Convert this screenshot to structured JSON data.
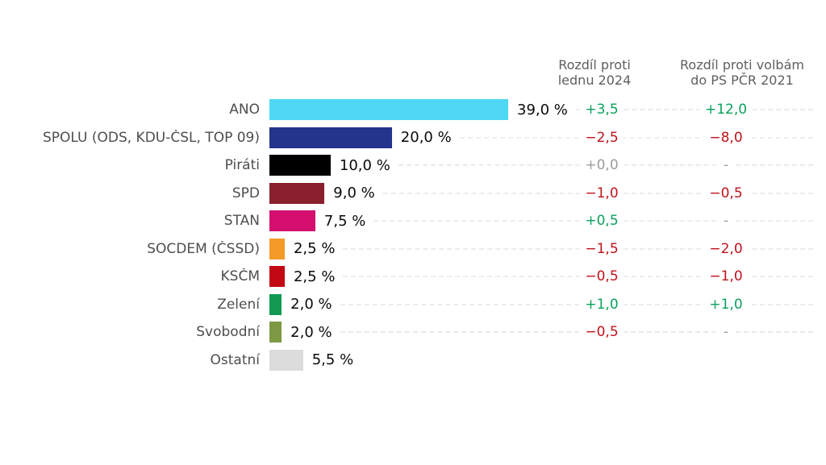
{
  "chart_data": {
    "type": "bar",
    "orientation": "horizontal",
    "title": "",
    "unit": "%",
    "value_axis_range": [
      0,
      39
    ],
    "grid": false,
    "legend": "none",
    "categories": [
      "ANO",
      "SPOLU (ODS, KDU-ČSL, TOP 09)",
      "Piráti",
      "SPD",
      "STAN",
      "SOCDEM (ČSSD)",
      "KSČM",
      "Zelení",
      "Svobodní",
      "Ostatní"
    ],
    "values": [
      39.0,
      20.0,
      10.0,
      9.0,
      7.5,
      2.5,
      2.5,
      2.0,
      2.0,
      5.5
    ],
    "value_labels": [
      "39,0 %",
      "20,0 %",
      "10,0 %",
      "9,0 %",
      "7,5 %",
      "2,5 %",
      "2,5 %",
      "2,0 %",
      "2,0 %",
      "5,5 %"
    ],
    "bar_colors": [
      "#4ed8f4",
      "#24338c",
      "#000000",
      "#8a1f2d",
      "#d40f70",
      "#f49a28",
      "#c10813",
      "#129a52",
      "#7c9a44",
      "#dcdcdc"
    ],
    "columns": [
      {
        "title_lines": [
          "Rozdíl proti",
          "lednu 2024"
        ],
        "values": [
          "+3,5",
          "−2,5",
          "+0,0",
          "−1,0",
          "+0,5",
          "−1,5",
          "−0,5",
          "+1,0",
          "−0,5",
          ""
        ],
        "trends": [
          "positive",
          "negative",
          "neutral",
          "negative",
          "positive",
          "negative",
          "negative",
          "positive",
          "negative",
          ""
        ]
      },
      {
        "title_lines": [
          "Rozdíl proti volbám",
          "do PS PČR 2021"
        ],
        "values": [
          "+12,0",
          "−8,0",
          "-",
          "−0,5",
          "-",
          "−2,0",
          "−1,0",
          "+1,0",
          "-",
          ""
        ],
        "trends": [
          "positive",
          "negative",
          "neutral",
          "negative",
          "neutral",
          "negative",
          "negative",
          "positive",
          "neutral",
          ""
        ]
      }
    ],
    "trend_colors": {
      "positive": "#0ba15a",
      "negative": "#c1121c",
      "neutral": "#9c9c9c"
    }
  }
}
